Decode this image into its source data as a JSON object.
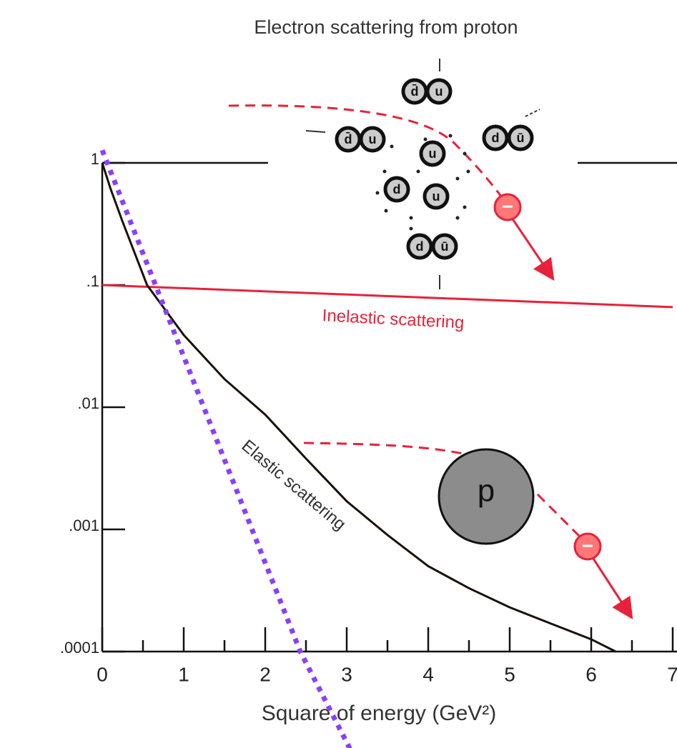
{
  "chart_data": {
    "type": "line",
    "title": "Electron scattering from proton",
    "xlabel": "Square of energy (GeV²)",
    "xlim": [
      0,
      7
    ],
    "xticks": [
      0,
      1,
      2,
      3,
      4,
      5,
      6,
      7
    ],
    "ylim": [
      0.0001,
      1
    ],
    "yscale": "log",
    "yticks": [
      1,
      {
        "value": 0.1,
        "label": ".1"
      },
      {
        "value": 0.01,
        "label": ".01"
      },
      {
        "value": 0.001,
        "label": ".001"
      },
      {
        "value": 0.0001,
        "label": ".0001"
      }
    ],
    "series": [
      {
        "name": "Inelastic scattering",
        "color": "#e8213a",
        "x": [
          0,
          7
        ],
        "values": [
          0.1,
          0.066
        ]
      },
      {
        "name": "Elastic scattering",
        "color": "#1a1208",
        "x": [
          0,
          0.1,
          0.25,
          0.55,
          1,
          1.5,
          2,
          2.5,
          3,
          3.5,
          4,
          4.5,
          5,
          5.5,
          6,
          6.3
        ],
        "values": [
          1,
          0.62,
          0.33,
          0.1,
          0.039,
          0.017,
          0.0087,
          0.0038,
          0.0017,
          0.0009,
          0.0005,
          0.00033,
          0.00023,
          0.00017,
          0.000126,
          0.0001
        ]
      },
      {
        "color": "#8a3ffc",
        "style": "dotted",
        "x": [
          0,
          2.43,
          3.04
        ],
        "values": [
          1.27,
          0.0001,
          1.6e-05
        ]
      }
    ],
    "quark_labels": [
      "d̄",
      "u",
      "d̄",
      "u",
      "d",
      "ū",
      "u",
      "d",
      "u",
      "d",
      "ū"
    ],
    "proton_label": "p",
    "electron_label": "−"
  }
}
